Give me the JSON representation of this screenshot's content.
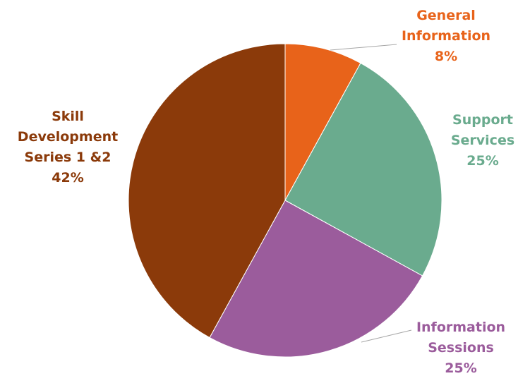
{
  "chart_data": {
    "type": "pie",
    "title": "",
    "legend": "none",
    "slices": [
      {
        "category_lines": [
          "General",
          "Information"
        ],
        "category": "General Information",
        "value": 8,
        "label": "8%",
        "color": "#E8631A"
      },
      {
        "category_lines": [
          "Support",
          "Services"
        ],
        "category": "Support Services",
        "value": 25,
        "label": "25%",
        "color": "#6AAB8E"
      },
      {
        "category_lines": [
          "Information",
          "Sessions"
        ],
        "category": "Information Sessions",
        "value": 25,
        "label": "25%",
        "color": "#9B5C9C"
      },
      {
        "category_lines": [
          "Skill",
          "Development",
          "Series 1 &2"
        ],
        "category": "Skill Development Series 1 &2",
        "value": 42,
        "label": "42%",
        "color": "#8B3A0A"
      }
    ]
  }
}
